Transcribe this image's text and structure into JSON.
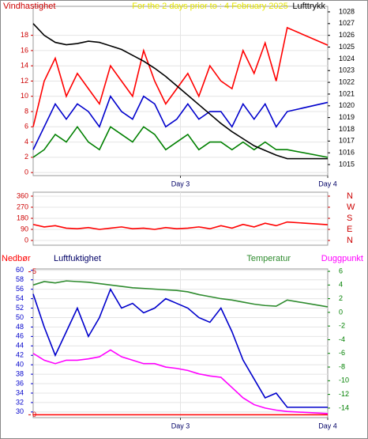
{
  "chart_data": [
    {
      "type": "line",
      "title": "For the 2 days prior to : 4 February 2025",
      "ylabel": "Vindhastighet",
      "y2label": "Lufttrykk",
      "ycolor": "#cc0000",
      "y2color": "#000000",
      "titlecolor": "#e6e600",
      "x": [
        2,
        2.075,
        2.15,
        2.225,
        2.3,
        2.375,
        2.45,
        2.525,
        2.6,
        2.675,
        2.75,
        2.825,
        2.9,
        2.975,
        3.05,
        3.125,
        3.2,
        3.275,
        3.35,
        3.425,
        3.5,
        3.575,
        3.65,
        3.725,
        4
      ],
      "xlim": [
        2,
        4
      ],
      "xticks": [
        {
          "value": 3,
          "label": "Day 3"
        },
        {
          "value": 4,
          "label": "Day 4"
        }
      ],
      "ylim": [
        -0.4,
        21.8
      ],
      "yticks": [
        0,
        2,
        4,
        6,
        8,
        10,
        12,
        14,
        16,
        18
      ],
      "y2lim": [
        1014.06,
        1028.47
      ],
      "y2ticks": [
        1015,
        1016,
        1017,
        1018,
        1019,
        1020,
        1021,
        1022,
        1023,
        1024,
        1025,
        1026,
        1027,
        1028
      ],
      "grid": true,
      "series": [
        {
          "color": "#ff0000",
          "values": [
            6,
            12,
            15,
            10,
            13,
            11,
            9,
            14,
            12,
            10,
            16,
            12,
            9,
            11,
            13,
            10,
            14,
            12,
            11,
            16,
            13,
            17,
            12,
            19,
            16.7
          ]
        },
        {
          "color": "#0000cc",
          "values": [
            3,
            6,
            9,
            7,
            9,
            8,
            6,
            10,
            8,
            7,
            10,
            9,
            6,
            7,
            9,
            7,
            8,
            8,
            6,
            9,
            7,
            9,
            6,
            8,
            9.2
          ]
        },
        {
          "color": "#008000",
          "values": [
            2,
            3,
            5,
            4,
            6,
            4,
            3,
            6,
            5,
            4,
            6,
            5,
            3,
            4,
            5,
            3,
            4,
            4,
            3,
            4,
            3,
            4,
            3,
            3,
            2
          ]
        },
        {
          "color": "#000000",
          "axis": "y2",
          "values": [
            1027,
            1026,
            1025.4,
            1025.2,
            1025.3,
            1025.5,
            1025.4,
            1025.1,
            1024.8,
            1024.3,
            1023.8,
            1023.2,
            1022.5,
            1021.7,
            1020.9,
            1020.1,
            1019.3,
            1018.5,
            1017.8,
            1017.2,
            1016.6,
            1016.2,
            1015.8,
            1015.5,
            1015.5
          ]
        }
      ]
    },
    {
      "type": "line",
      "ycolor": "#cc0000",
      "y2color": "#cc0000",
      "x": [
        2,
        2.075,
        2.15,
        2.225,
        2.3,
        2.375,
        2.45,
        2.525,
        2.6,
        2.675,
        2.75,
        2.825,
        2.9,
        2.975,
        3.05,
        3.125,
        3.2,
        3.275,
        3.35,
        3.425,
        3.5,
        3.575,
        3.65,
        3.725,
        4
      ],
      "xlim": [
        2,
        4
      ],
      "ylim": [
        -38.6,
        392
      ],
      "yticks": [
        0,
        90,
        180,
        270,
        360
      ],
      "y2lim": [
        -38.6,
        392
      ],
      "y2ticks": [
        {
          "value": 0,
          "label": "N"
        },
        {
          "value": 90,
          "label": "E"
        },
        {
          "value": 180,
          "label": "S"
        },
        {
          "value": 270,
          "label": "W"
        },
        {
          "value": 360,
          "label": "N"
        }
      ],
      "grid": true,
      "series": [
        {
          "color": "#ff0000",
          "values": [
            130,
            110,
            120,
            100,
            95,
            105,
            90,
            100,
            110,
            95,
            100,
            90,
            105,
            95,
            100,
            110,
            95,
            120,
            100,
            130,
            110,
            140,
            120,
            150,
            128
          ]
        }
      ]
    },
    {
      "type": "line",
      "ycolor": "#0000cc",
      "y2color": "#008000",
      "y3color": "#cc0000",
      "x": [
        2,
        2.075,
        2.15,
        2.225,
        2.3,
        2.375,
        2.45,
        2.525,
        2.6,
        2.675,
        2.75,
        2.825,
        2.9,
        2.975,
        3.05,
        3.125,
        3.2,
        3.275,
        3.35,
        3.425,
        3.5,
        3.575,
        3.65,
        3.725,
        4
      ],
      "xlim": [
        2,
        4
      ],
      "xticks": [
        {
          "value": 3,
          "label": "Day 3"
        },
        {
          "value": 4,
          "label": "Day 4"
        }
      ],
      "ylim": [
        28.8,
        60.3
      ],
      "yticks": [
        30,
        32,
        34,
        36,
        38,
        40,
        42,
        44,
        46,
        48,
        50,
        52,
        54,
        56,
        58,
        60
      ],
      "y2lim": [
        -15.4,
        6.35
      ],
      "y2ticks": [
        -14,
        -12,
        -10,
        -8,
        -6,
        -4,
        -2,
        0,
        2,
        4,
        6
      ],
      "y3lim": [
        -0.1,
        5.1
      ],
      "y3ticks": [
        0,
        5
      ],
      "grid": true,
      "series": [
        {
          "name": "Nedbør",
          "color": "#ff0000",
          "axis": "y3",
          "values": [
            0,
            0,
            0,
            0,
            0,
            0,
            0,
            0,
            0,
            0,
            0,
            0,
            0,
            0,
            0,
            0,
            0,
            0,
            0,
            0,
            0,
            0,
            0,
            0,
            0
          ]
        },
        {
          "name": "Luftfuktighet",
          "color": "#0000cc",
          "values": [
            55,
            48,
            42,
            47,
            52,
            46,
            50,
            56,
            52,
            53,
            51,
            52,
            54,
            53,
            52,
            50,
            49,
            52,
            47,
            41,
            37,
            33,
            34,
            31,
            31
          ]
        },
        {
          "name": "Temperatur",
          "color": "#2e8b2e",
          "axis": "y2",
          "values": [
            4,
            4.5,
            4.3,
            4.6,
            4.5,
            4.4,
            4.2,
            4,
            3.8,
            3.6,
            3.5,
            3.4,
            3.3,
            3.2,
            3,
            2.6,
            2.3,
            2,
            1.8,
            1.5,
            1.2,
            1,
            0.9,
            1.8,
            0.8
          ]
        },
        {
          "name": "Duggpunkt",
          "color": "#ff00ff",
          "axis": "y2",
          "values": [
            -6,
            -7,
            -7.5,
            -7,
            -7,
            -6.8,
            -6.5,
            -5.5,
            -6.5,
            -7,
            -7.5,
            -7.5,
            -8,
            -8.2,
            -8.5,
            -9,
            -9.3,
            -9.5,
            -11,
            -12.5,
            -13.5,
            -14,
            -14.3,
            -14.5,
            -14.8
          ]
        }
      ]
    }
  ]
}
